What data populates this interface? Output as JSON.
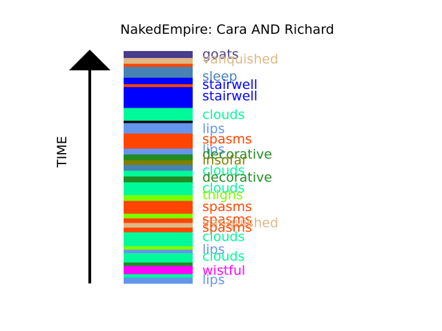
{
  "chart_data": {
    "type": "timeline-stripes",
    "title": "NakedEmpire: Cara AND Richard",
    "ylabel": "TIME",
    "stripes": [
      {
        "t": 0.0,
        "color": "#483D8B"
      },
      {
        "t": 0.03,
        "color": "#DEB887"
      },
      {
        "t": 0.055,
        "color": "#FF4500"
      },
      {
        "t": 0.068,
        "color": "#4682B4"
      },
      {
        "t": 0.115,
        "color": "#0000FF"
      },
      {
        "t": 0.143,
        "color": "#FF4500"
      },
      {
        "t": 0.155,
        "color": "#0000FF"
      },
      {
        "t": 0.245,
        "color": "#00FA9A"
      },
      {
        "t": 0.3,
        "color": "#000000"
      },
      {
        "t": 0.31,
        "color": "#6495ED"
      },
      {
        "t": 0.355,
        "color": "#FF4500"
      },
      {
        "t": 0.42,
        "color": "#6495ED"
      },
      {
        "t": 0.445,
        "color": "#228B22"
      },
      {
        "t": 0.47,
        "color": "#808000"
      },
      {
        "t": 0.49,
        "color": "#4682B4"
      },
      {
        "t": 0.515,
        "color": "#00FA9A"
      },
      {
        "t": 0.54,
        "color": "#228B22"
      },
      {
        "t": 0.565,
        "color": "#00FA9A"
      },
      {
        "t": 0.62,
        "color": "#7CFC00"
      },
      {
        "t": 0.645,
        "color": "#FF4500"
      },
      {
        "t": 0.7,
        "color": "#7CFC00"
      },
      {
        "t": 0.72,
        "color": "#FF4500"
      },
      {
        "t": 0.74,
        "color": "#DEB887"
      },
      {
        "t": 0.76,
        "color": "#FF4500"
      },
      {
        "t": 0.78,
        "color": "#00FA9A"
      },
      {
        "t": 0.84,
        "color": "#7CFC00"
      },
      {
        "t": 0.855,
        "color": "#6495ED"
      },
      {
        "t": 0.87,
        "color": "#00FA9A"
      },
      {
        "t": 0.91,
        "color": "#228B22"
      },
      {
        "t": 0.925,
        "color": "#FF00FF"
      },
      {
        "t": 0.96,
        "color": "#00FA9A"
      },
      {
        "t": 0.975,
        "color": "#6495ED"
      },
      {
        "t": 1.0,
        "color": "#6495ED"
      }
    ],
    "labels": [
      {
        "text": "goats",
        "t": 0.015,
        "color": "#483D8B"
      },
      {
        "text": "vanquished",
        "t": 0.035,
        "color": "#DEB887"
      },
      {
        "text": "sleep",
        "t": 0.11,
        "color": "#4682B4"
      },
      {
        "text": "stairwell",
        "t": 0.145,
        "color": "#0000FF"
      },
      {
        "text": "stairwell",
        "t": 0.195,
        "color": "#0000FF"
      },
      {
        "text": "clouds",
        "t": 0.275,
        "color": "#00FA9A"
      },
      {
        "text": "lips",
        "t": 0.335,
        "color": "#6495ED"
      },
      {
        "text": "spasms",
        "t": 0.38,
        "color": "#FF4500"
      },
      {
        "text": "lips",
        "t": 0.425,
        "color": "#6495ED"
      },
      {
        "text": "decorative",
        "t": 0.445,
        "color": "#228B22"
      },
      {
        "text": "insofar",
        "t": 0.47,
        "color": "#808000"
      },
      {
        "text": "clouds",
        "t": 0.515,
        "color": "#00FA9A"
      },
      {
        "text": "decorative",
        "t": 0.545,
        "color": "#228B22"
      },
      {
        "text": "clouds",
        "t": 0.59,
        "color": "#00FA9A"
      },
      {
        "text": "thighs",
        "t": 0.62,
        "color": "#7CFC00"
      },
      {
        "text": "spasms",
        "t": 0.67,
        "color": "#FF4500"
      },
      {
        "text": "spasms",
        "t": 0.725,
        "color": "#FF4500"
      },
      {
        "text": "vanquished",
        "t": 0.74,
        "color": "#DEB887"
      },
      {
        "text": "spasms",
        "t": 0.76,
        "color": "#FF4500"
      },
      {
        "text": "clouds",
        "t": 0.8,
        "color": "#00FA9A"
      },
      {
        "text": "lips",
        "t": 0.855,
        "color": "#6495ED"
      },
      {
        "text": "clouds",
        "t": 0.885,
        "color": "#00FA9A"
      },
      {
        "text": "wistful",
        "t": 0.945,
        "color": "#FF00FF"
      },
      {
        "text": "lips",
        "t": 0.985,
        "color": "#6495ED"
      }
    ]
  }
}
